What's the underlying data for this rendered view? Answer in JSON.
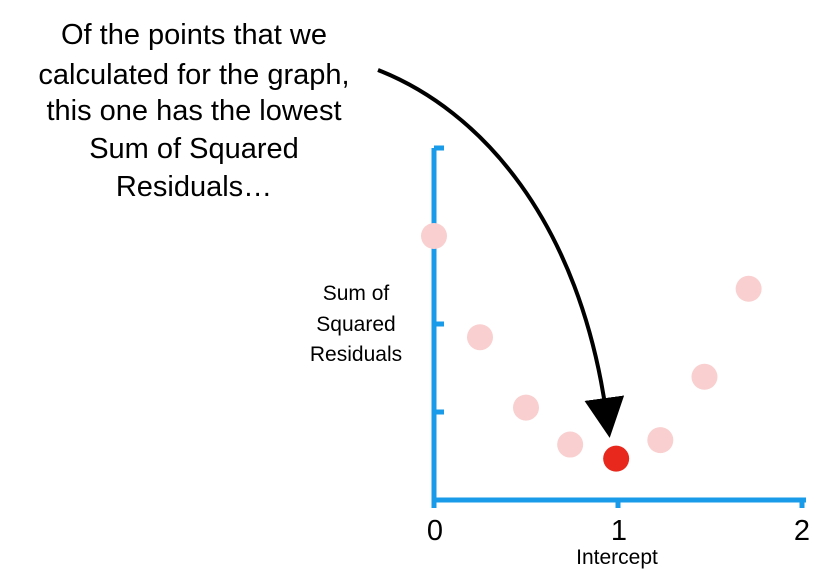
{
  "chart_data": {
    "type": "scatter",
    "title": "",
    "xlabel": "Intercept",
    "ylabel_lines": [
      "Sum of",
      "Squared",
      "Residuals"
    ],
    "xlim": [
      0,
      2
    ],
    "ylim": [
      0,
      4
    ],
    "x_ticks": [
      "0",
      "1",
      "2"
    ],
    "grid": false,
    "legend": "none",
    "axis_color": "#1a9bea",
    "point_color": "#f9cfcf",
    "highlight_color": "#e8281c",
    "points": [
      {
        "x": 0.0,
        "y": 3.0,
        "highlight": false
      },
      {
        "x": 0.25,
        "y": 1.85,
        "highlight": false
      },
      {
        "x": 0.5,
        "y": 1.05,
        "highlight": false
      },
      {
        "x": 0.74,
        "y": 0.63,
        "highlight": false
      },
      {
        "x": 0.99,
        "y": 0.47,
        "highlight": true
      },
      {
        "x": 1.23,
        "y": 0.68,
        "highlight": false
      },
      {
        "x": 1.47,
        "y": 1.4,
        "highlight": false
      },
      {
        "x": 1.71,
        "y": 2.4,
        "highlight": false
      }
    ],
    "annotation": {
      "lines": [
        "Of the points that we",
        "calculated for the graph,",
        "this one has the lowest",
        "Sum of Squared",
        "Residuals…"
      ],
      "arrow_color": "#000000"
    }
  }
}
